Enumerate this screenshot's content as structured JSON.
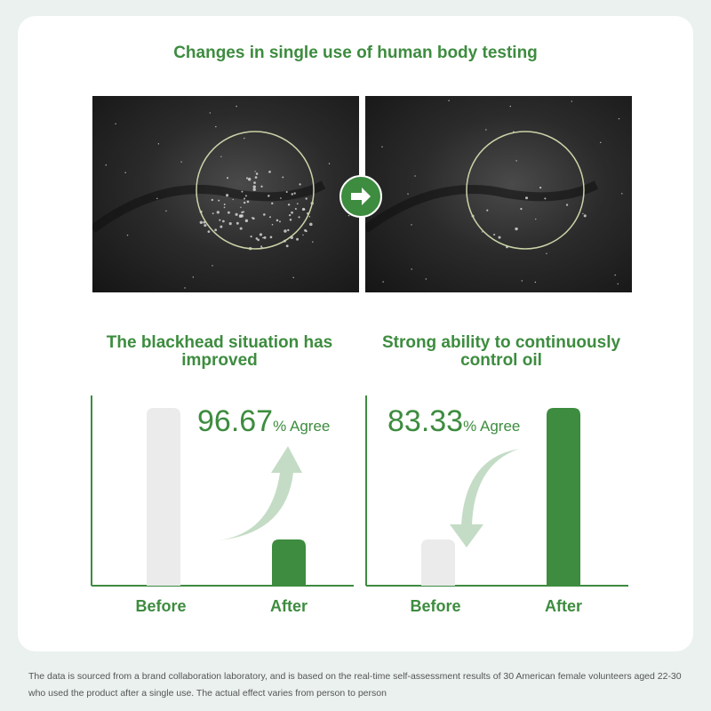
{
  "title": "Changes in single use of human body testing",
  "photos": {
    "before_icon": "nose-skin-closeup-before",
    "after_icon": "nose-skin-closeup-after",
    "transition_icon": "arrow-right-icon"
  },
  "colors": {
    "accent": "#3d8c3f",
    "before_bar": "#ebebeb",
    "background": "#eaf1ee"
  },
  "chart_data": [
    {
      "type": "bar",
      "title": "The blackhead situation has improved",
      "categories": [
        "Before",
        "After"
      ],
      "values": [
        100,
        26
      ],
      "annotation": "96.67",
      "annotation_unit": "% Agree",
      "trend": "decrease"
    },
    {
      "type": "bar",
      "title": "Strong ability to continuously control oil",
      "categories": [
        "Before",
        "After"
      ],
      "values": [
        26,
        100
      ],
      "annotation": "83.33",
      "annotation_unit": "% Agree",
      "trend": "increase"
    }
  ],
  "footnote": "The data is sourced from a brand collaboration laboratory, and is based on the real-time self-assessment results of 30 American female volunteers aged 22-30 who used the product after a single use. The actual effect varies from person to person"
}
